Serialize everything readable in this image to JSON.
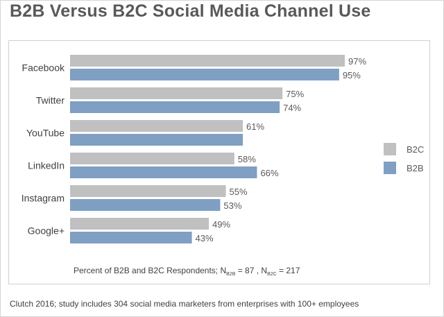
{
  "title": "B2B Versus B2C Social Media Channel Use",
  "note": {
    "prefix": "Percent of B2B and B2C Respondents; N",
    "sub1": "B2B",
    "mid": " = 87 , N",
    "sub2": "B2C",
    "suffix": " = 217"
  },
  "source": "Clutch 2016; study includes 304 social media marketers from enterprises with 100+ employees",
  "chart_data": {
    "type": "bar",
    "orientation": "horizontal",
    "title": "B2B Versus B2C Social Media Channel Use",
    "categories": [
      "Facebook",
      "Twitter",
      "YouTube",
      "LinkedIn",
      "Instagram",
      "Google+"
    ],
    "series": [
      {
        "name": "B2C",
        "values": [
          97,
          75,
          61,
          58,
          55,
          49
        ],
        "labels": [
          "97%",
          "75%",
          "61%",
          "58%",
          "55%",
          "49%"
        ],
        "color": "#c0c0c0"
      },
      {
        "name": "B2B",
        "values": [
          95,
          74,
          61,
          66,
          53,
          43
        ],
        "labels": [
          "95%",
          "74%",
          "",
          "66%",
          "53%",
          "43%"
        ],
        "color": "#7f9fc3"
      }
    ],
    "xlim": [
      0,
      100
    ],
    "grid": false,
    "legend": {
      "placement": "right",
      "items": [
        "B2C",
        "B2B"
      ]
    }
  }
}
